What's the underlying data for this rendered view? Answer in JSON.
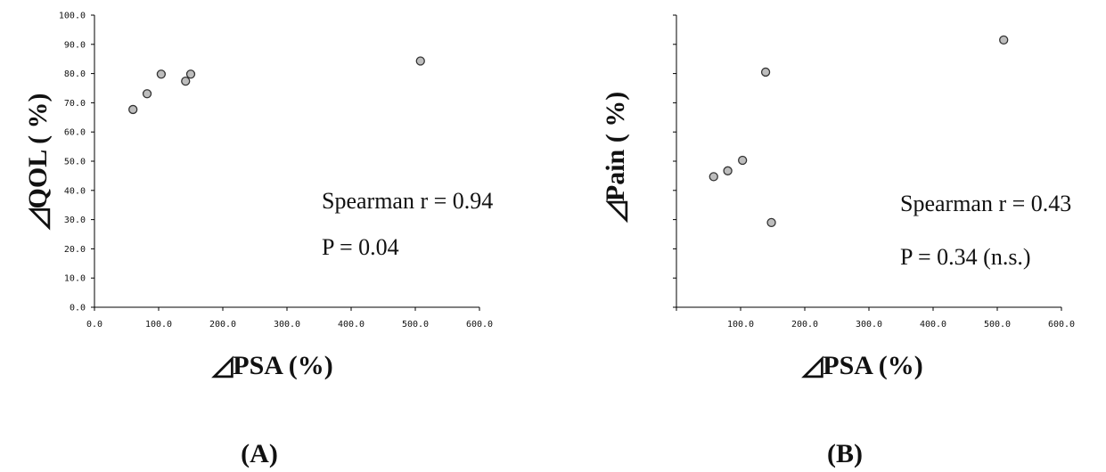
{
  "chart_data": [
    {
      "type": "scatter",
      "panel_label": "(A)",
      "xlabel": "◿PSA (%)",
      "ylabel": "◿QOL ( %)",
      "xlim": [
        0,
        600
      ],
      "ylim": [
        0,
        100
      ],
      "x_ticks": [
        "0.0",
        "100.0",
        "200.0",
        "300.0",
        "400.0",
        "500.0",
        "600.0"
      ],
      "y_ticks": [
        "0.0",
        "10.0",
        "20.0",
        "30.0",
        "40.0",
        "50.0",
        "60.0",
        "70.0",
        "80.0",
        "90.0",
        "100.0"
      ],
      "series": [
        {
          "points": [
            {
              "x": 60,
              "y": 67.7
            },
            {
              "x": 82,
              "y": 73.1
            },
            {
              "x": 104,
              "y": 79.8
            },
            {
              "x": 142,
              "y": 77.4
            },
            {
              "x": 150,
              "y": 79.8
            },
            {
              "x": 508,
              "y": 84.3
            }
          ]
        }
      ],
      "annotations": [
        "Spearman r = 0.94",
        "P = 0.04"
      ],
      "colors": {
        "marker_fill": "#bdbdbd",
        "marker_stroke": "#333333",
        "axis": "#000000"
      }
    },
    {
      "type": "scatter",
      "panel_label": "(B)",
      "xlabel": "◿PSA (%)",
      "ylabel": "◿Pain ( %)",
      "xlim": [
        0,
        600
      ],
      "ylim": [
        0,
        100
      ],
      "x_ticks": [
        "",
        "100.0",
        "200.0",
        "300.0",
        "400.0",
        "500.0",
        "600.0"
      ],
      "y_ticks": [],
      "series": [
        {
          "points": [
            {
              "x": 58,
              "y": 44.7
            },
            {
              "x": 80,
              "y": 46.7
            },
            {
              "x": 103,
              "y": 50.3
            },
            {
              "x": 139,
              "y": 80.5
            },
            {
              "x": 148,
              "y": 29.0
            },
            {
              "x": 510,
              "y": 91.5
            }
          ]
        }
      ],
      "annotations": [
        "Spearman r = 0.43",
        "P = 0.34 (n.s.)"
      ],
      "colors": {
        "marker_fill": "#bdbdbd",
        "marker_stroke": "#333333",
        "axis": "#000000"
      }
    }
  ]
}
